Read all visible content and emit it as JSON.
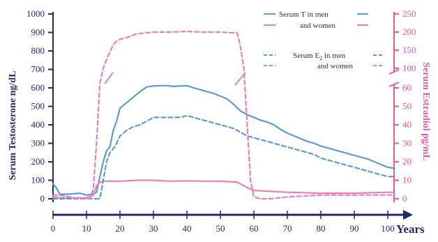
{
  "chart_data": {
    "type": "line",
    "xlabel": "Years",
    "ylabel": "Serum Testosterone ng/dL",
    "y2label": "Serum Estradiol pg/mL",
    "xlim": [
      0,
      100
    ],
    "ylim": [
      0,
      1000
    ],
    "y2_axis": {
      "lower_range": [
        0,
        60
      ],
      "upper_range": [
        100,
        250
      ],
      "note": "broken axis between 60 and 100 pg/mL"
    },
    "x_ticks": [
      "0",
      "10",
      "20",
      "30",
      "40",
      "50",
      "60",
      "70",
      "80",
      "90",
      "100"
    ],
    "y_ticks": [
      "0",
      "100",
      "200",
      "300",
      "400",
      "500",
      "600",
      "700",
      "800",
      "900",
      "1000"
    ],
    "y2_ticks_lower": [
      "0",
      "10",
      "20",
      "30",
      "40",
      "50",
      "60"
    ],
    "y2_ticks_upper": [
      "100",
      "150",
      "200",
      "250"
    ],
    "legend": [
      {
        "line1": "Serum T in men",
        "line2": "and women",
        "dashed": false
      },
      {
        "line1": "Serum E",
        "sub": "2",
        "line1_suffix": " in men",
        "line2": "and women",
        "dashed": true
      }
    ],
    "series": [
      {
        "name": "Serum T in men",
        "axis": "left",
        "dashed": false,
        "color": "#5b9bd5",
        "x": [
          0,
          1,
          2,
          5,
          8,
          10,
          12,
          13,
          14,
          15,
          16,
          17,
          18,
          19,
          20,
          22,
          24,
          26,
          28,
          30,
          32,
          34,
          36,
          38,
          40,
          42,
          44,
          46,
          48,
          50,
          52,
          54,
          56,
          58,
          60,
          62,
          64,
          66,
          68,
          70,
          72,
          74,
          76,
          78,
          80,
          82,
          84,
          86,
          88,
          90,
          92,
          94,
          96,
          98,
          100,
          102
        ],
        "y": [
          80,
          60,
          25,
          25,
          30,
          20,
          25,
          35,
          120,
          200,
          260,
          280,
          370,
          420,
          490,
          520,
          550,
          580,
          605,
          610,
          612,
          612,
          608,
          610,
          612,
          600,
          590,
          580,
          570,
          555,
          540,
          510,
          475,
          455,
          440,
          425,
          415,
          400,
          375,
          355,
          340,
          325,
          310,
          300,
          285,
          275,
          265,
          255,
          245,
          235,
          225,
          215,
          200,
          185,
          170,
          165
        ]
      },
      {
        "name": "Serum T in women",
        "axis": "left",
        "dashed": false,
        "color": "#e880b7",
        "x": [
          0,
          2,
          5,
          8,
          10,
          12,
          13,
          14,
          15,
          18,
          20,
          25,
          28,
          30,
          35,
          40,
          45,
          50,
          55,
          58,
          60,
          65,
          70,
          80,
          90,
          100,
          102
        ],
        "y": [
          10,
          5,
          5,
          5,
          5,
          20,
          70,
          90,
          95,
          95,
          95,
          100,
          100,
          100,
          95,
          97,
          95,
          95,
          90,
          60,
          45,
          40,
          35,
          30,
          30,
          35,
          35
        ]
      },
      {
        "name": "Serum E2 in men",
        "axis": "right",
        "dashed": true,
        "color": "#5b9bd5",
        "x": [
          0,
          2,
          5,
          8,
          10,
          12,
          14,
          15,
          16,
          17,
          18,
          19,
          20,
          22,
          24,
          26,
          28,
          30,
          32,
          34,
          36,
          38,
          40,
          42,
          44,
          46,
          48,
          50,
          52,
          54,
          56,
          58,
          60,
          62,
          64,
          66,
          68,
          70,
          72,
          74,
          76,
          78,
          80,
          82,
          84,
          86,
          88,
          90,
          92,
          94,
          96,
          98,
          100,
          102
        ],
        "y": [
          0,
          0,
          0,
          0,
          0,
          0,
          0,
          10,
          20,
          25,
          27,
          30,
          34,
          37,
          39,
          40,
          42,
          44,
          44,
          44,
          44,
          44,
          45,
          44,
          43,
          42,
          41,
          40,
          39,
          38,
          36,
          34,
          33,
          32,
          31,
          30,
          29,
          28,
          27,
          26,
          25,
          24,
          22,
          21,
          20,
          19,
          18,
          17,
          16,
          15,
          14,
          13,
          12,
          12
        ]
      },
      {
        "name": "Serum E2 in women",
        "axis": "right",
        "dashed": true,
        "color": "#e880b7",
        "x": [
          0,
          2,
          5,
          8,
          10,
          11,
          12,
          13,
          14,
          15,
          16,
          17,
          18,
          19,
          20,
          22,
          25,
          28,
          30,
          35,
          40,
          45,
          50,
          53,
          55,
          56,
          57,
          58,
          59,
          60,
          62,
          65,
          70,
          80,
          90,
          100,
          102
        ],
        "y": [
          2,
          2,
          1,
          0,
          0,
          0,
          5,
          30,
          70,
          100,
          125,
          145,
          165,
          175,
          180,
          185,
          195,
          198,
          200,
          200,
          202,
          200,
          200,
          198,
          198,
          160,
          100,
          40,
          10,
          1,
          0,
          0,
          1,
          2,
          2,
          2,
          2
        ]
      }
    ]
  }
}
